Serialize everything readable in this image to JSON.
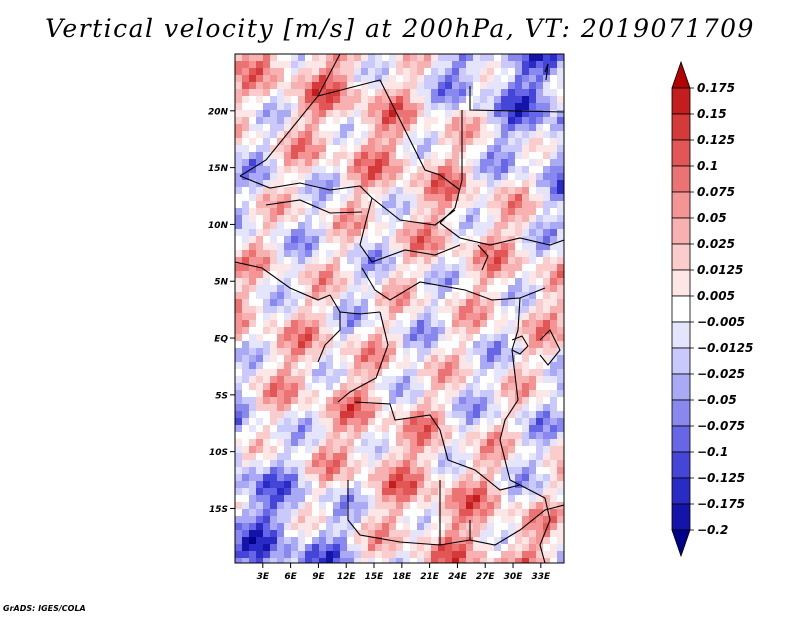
{
  "title": "Vertical velocity [m/s] at 200hPa, VT: 2019071709",
  "credit": "GrADS: IGES/COLA",
  "chart_data": {
    "type": "heatmap",
    "title": "Vertical velocity [m/s] at 200hPa, VT: 2019071709",
    "variable": "Vertical velocity",
    "units": "m/s",
    "level": "200hPa",
    "valid_time": "2019071709",
    "xlabel": "",
    "ylabel": "",
    "x_ticks": [
      {
        "value": 3,
        "label": "3E"
      },
      {
        "value": 6,
        "label": "6E"
      },
      {
        "value": 9,
        "label": "9E"
      },
      {
        "value": 12,
        "label": "12E"
      },
      {
        "value": 15,
        "label": "15E"
      },
      {
        "value": 18,
        "label": "18E"
      },
      {
        "value": 21,
        "label": "21E"
      },
      {
        "value": 24,
        "label": "24E"
      },
      {
        "value": 27,
        "label": "27E"
      },
      {
        "value": 30,
        "label": "30E"
      },
      {
        "value": 33,
        "label": "33E"
      }
    ],
    "y_ticks": [
      {
        "value": 20,
        "label": "20N"
      },
      {
        "value": 15,
        "label": "15N"
      },
      {
        "value": 10,
        "label": "10N"
      },
      {
        "value": 5,
        "label": "5N"
      },
      {
        "value": 0,
        "label": "EQ"
      },
      {
        "value": -5,
        "label": "5S"
      },
      {
        "value": -10,
        "label": "10S"
      },
      {
        "value": -15,
        "label": "15S"
      }
    ],
    "xlim": [
      0,
      35.5
    ],
    "ylim": [
      -19.8,
      25
    ],
    "colorbar": {
      "levels": [
        "0.175",
        "0.15",
        "0.125",
        "0.1",
        "0.075",
        "0.05",
        "0.025",
        "0.0125",
        "0.005",
        "-0.005",
        "-0.0125",
        "-0.025",
        "-0.05",
        "-0.075",
        "-0.1",
        "-0.125",
        "-0.175",
        "-0.2"
      ],
      "colors": [
        "#b30000",
        "#c41d1d",
        "#d43a3a",
        "#e25656",
        "#ec7373",
        "#f49494",
        "#f8b1b1",
        "#fbcccc",
        "#fde6e6",
        "#ffffff",
        "#e4e4fd",
        "#c9c9fb",
        "#a9a9f5",
        "#8888ef",
        "#6666e6",
        "#4545d8",
        "#2a2ac4",
        "#1414aa",
        "#00008c"
      ]
    }
  }
}
